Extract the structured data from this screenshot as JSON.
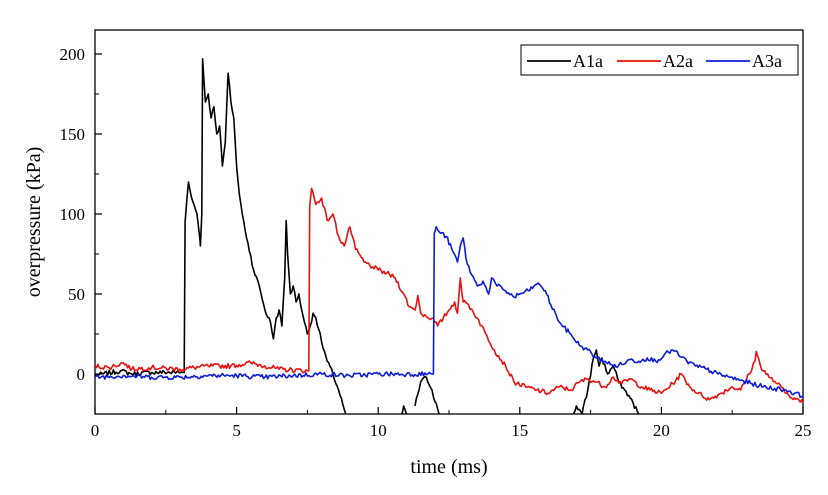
{
  "chart_data": {
    "type": "line",
    "xlabel": "time (ms)",
    "ylabel": "overpressure (kPa)",
    "xlim": [
      0,
      25
    ],
    "ylim": [
      -25,
      215
    ],
    "x_ticks": [
      "0",
      "5",
      "10",
      "15",
      "20",
      "25"
    ],
    "y_ticks": [
      "0",
      "50",
      "100",
      "150",
      "200"
    ],
    "legend_position": "top-right",
    "grid": false,
    "series": [
      {
        "name": "A1a",
        "color": "#000000",
        "points": [
          [
            0,
            -1
          ],
          [
            0.9,
            2
          ],
          [
            1.3,
            0
          ],
          [
            2,
            1
          ],
          [
            3.1,
            1
          ],
          [
            3.15,
            1
          ],
          [
            3.18,
            95
          ],
          [
            3.25,
            110
          ],
          [
            3.3,
            120
          ],
          [
            3.45,
            108
          ],
          [
            3.6,
            100
          ],
          [
            3.7,
            85
          ],
          [
            3.72,
            80
          ],
          [
            3.77,
            100
          ],
          [
            3.8,
            197
          ],
          [
            3.9,
            170
          ],
          [
            4,
            175
          ],
          [
            4.1,
            160
          ],
          [
            4.2,
            167
          ],
          [
            4.3,
            150
          ],
          [
            4.4,
            155
          ],
          [
            4.5,
            130
          ],
          [
            4.6,
            145
          ],
          [
            4.7,
            188
          ],
          [
            4.8,
            170
          ],
          [
            4.9,
            160
          ],
          [
            5,
            130
          ],
          [
            5.1,
            112
          ],
          [
            5.2,
            100
          ],
          [
            5.3,
            90
          ],
          [
            5.4,
            82
          ],
          [
            5.6,
            65
          ],
          [
            5.8,
            55
          ],
          [
            6,
            40
          ],
          [
            6.2,
            32
          ],
          [
            6.3,
            22
          ],
          [
            6.4,
            35
          ],
          [
            6.5,
            40
          ],
          [
            6.6,
            30
          ],
          [
            6.7,
            60
          ],
          [
            6.75,
            96
          ],
          [
            6.8,
            75
          ],
          [
            6.9,
            50
          ],
          [
            7,
            55
          ],
          [
            7.1,
            45
          ],
          [
            7.2,
            50
          ],
          [
            7.3,
            40
          ],
          [
            7.4,
            32
          ],
          [
            7.5,
            25
          ],
          [
            7.6,
            30
          ],
          [
            7.7,
            38
          ],
          [
            7.8,
            35
          ],
          [
            7.9,
            28
          ],
          [
            8,
            20
          ],
          [
            8.2,
            8
          ],
          [
            8.4,
            0
          ],
          [
            8.6,
            -10
          ],
          [
            8.8,
            -22
          ],
          [
            8.9,
            -30
          ]
        ],
        "segments_after_gap": [
          [
            [
              10.8,
              -30
            ],
            [
              10.9,
              -20
            ],
            [
              11,
              -25
            ],
            [
              11.2,
              -30
            ]
          ],
          [
            [
              11.3,
              -20
            ],
            [
              11.5,
              -5
            ],
            [
              11.7,
              -2
            ],
            [
              11.9,
              -10
            ],
            [
              12.1,
              -22
            ],
            [
              12.2,
              -30
            ]
          ],
          [
            [
              16.8,
              -30
            ],
            [
              17,
              -20
            ],
            [
              17.2,
              -25
            ],
            [
              17.4,
              -10
            ],
            [
              17.6,
              10
            ],
            [
              17.7,
              15
            ],
            [
              17.8,
              5
            ],
            [
              17.9,
              10
            ],
            [
              18.1,
              0
            ],
            [
              18.3,
              5
            ],
            [
              18.5,
              -5
            ],
            [
              18.7,
              -10
            ],
            [
              18.9,
              -15
            ],
            [
              19.2,
              -25
            ],
            [
              19.4,
              -30
            ]
          ]
        ]
      },
      {
        "name": "A2a",
        "color": "#e8110e",
        "points": [
          [
            0,
            5
          ],
          [
            0.5,
            4
          ],
          [
            1,
            7
          ],
          [
            1.3,
            3
          ],
          [
            2,
            4
          ],
          [
            3,
            3
          ],
          [
            4,
            5
          ],
          [
            4.8,
            5
          ],
          [
            5.5,
            7
          ],
          [
            6,
            5
          ],
          [
            6.5,
            3
          ],
          [
            7.5,
            2
          ],
          [
            7.55,
            2
          ],
          [
            7.58,
            105
          ],
          [
            7.65,
            116
          ],
          [
            7.8,
            106
          ],
          [
            8,
            110
          ],
          [
            8.2,
            96
          ],
          [
            8.4,
            100
          ],
          [
            8.6,
            86
          ],
          [
            8.8,
            80
          ],
          [
            9,
            92
          ],
          [
            9.2,
            78
          ],
          [
            9.5,
            70
          ],
          [
            9.8,
            67
          ],
          [
            10,
            65
          ],
          [
            10.3,
            63
          ],
          [
            10.6,
            60
          ],
          [
            10.9,
            50
          ],
          [
            11.1,
            42
          ],
          [
            11.3,
            40
          ],
          [
            11.4,
            49
          ],
          [
            11.5,
            38
          ],
          [
            11.7,
            36
          ],
          [
            11.9,
            35
          ],
          [
            12.1,
            30
          ],
          [
            12.3,
            35
          ],
          [
            12.5,
            40
          ],
          [
            12.7,
            45
          ],
          [
            12.8,
            38
          ],
          [
            12.9,
            60
          ],
          [
            13,
            45
          ],
          [
            13.2,
            43
          ],
          [
            13.5,
            35
          ],
          [
            13.8,
            25
          ],
          [
            14.1,
            15
          ],
          [
            14.5,
            5
          ],
          [
            14.8,
            -5
          ],
          [
            15.2,
            -8
          ],
          [
            15.6,
            -10
          ],
          [
            16,
            -12
          ],
          [
            16.4,
            -8
          ],
          [
            16.8,
            -10
          ],
          [
            17.1,
            -5
          ],
          [
            17.4,
            -3
          ],
          [
            17.7,
            -5
          ],
          [
            18,
            -8
          ],
          [
            18.3,
            -2
          ],
          [
            18.6,
            -6
          ],
          [
            18.9,
            -3
          ],
          [
            19.3,
            -8
          ],
          [
            19.6,
            -10
          ],
          [
            20,
            -12
          ],
          [
            20.4,
            -6
          ],
          [
            20.7,
            0
          ],
          [
            21,
            -8
          ],
          [
            21.3,
            -12
          ],
          [
            21.7,
            -16
          ],
          [
            22.1,
            -12
          ],
          [
            22.5,
            -8
          ],
          [
            22.8,
            -10
          ],
          [
            23.1,
            0
          ],
          [
            23.3,
            8
          ],
          [
            23.35,
            14
          ],
          [
            23.5,
            5
          ],
          [
            23.8,
            -2
          ],
          [
            24.1,
            -6
          ],
          [
            24.4,
            -12
          ],
          [
            24.7,
            -15
          ],
          [
            25,
            -18
          ]
        ]
      },
      {
        "name": "A3a",
        "color": "#0b1bd8",
        "points": [
          [
            0,
            -2
          ],
          [
            1,
            -1
          ],
          [
            2,
            -2
          ],
          [
            3,
            -2
          ],
          [
            4,
            -1
          ],
          [
            5,
            -1
          ],
          [
            6,
            -2
          ],
          [
            7,
            -1
          ],
          [
            8,
            0
          ],
          [
            9,
            -1
          ],
          [
            10,
            0
          ],
          [
            11,
            0
          ],
          [
            11.9,
            0
          ],
          [
            11.95,
            0
          ],
          [
            11.98,
            88
          ],
          [
            12.05,
            92
          ],
          [
            12.2,
            88
          ],
          [
            12.4,
            86
          ],
          [
            12.6,
            78
          ],
          [
            12.8,
            70
          ],
          [
            12.9,
            80
          ],
          [
            13,
            85
          ],
          [
            13.1,
            72
          ],
          [
            13.3,
            62
          ],
          [
            13.5,
            55
          ],
          [
            13.7,
            58
          ],
          [
            13.9,
            50
          ],
          [
            14,
            60
          ],
          [
            14.2,
            55
          ],
          [
            14.5,
            52
          ],
          [
            14.8,
            48
          ],
          [
            15,
            50
          ],
          [
            15.3,
            52
          ],
          [
            15.5,
            55
          ],
          [
            15.7,
            56
          ],
          [
            15.9,
            52
          ],
          [
            16.1,
            43
          ],
          [
            16.3,
            36
          ],
          [
            16.5,
            30
          ],
          [
            16.8,
            25
          ],
          [
            17.1,
            18
          ],
          [
            17.4,
            15
          ],
          [
            17.7,
            10
          ],
          [
            18,
            8
          ],
          [
            18.3,
            5
          ],
          [
            18.6,
            6
          ],
          [
            18.9,
            9
          ],
          [
            19.2,
            8
          ],
          [
            19.5,
            10
          ],
          [
            19.8,
            8
          ],
          [
            20.1,
            12
          ],
          [
            20.4,
            15
          ],
          [
            20.6,
            12
          ],
          [
            20.9,
            8
          ],
          [
            21.2,
            5
          ],
          [
            21.6,
            3
          ],
          [
            22,
            0
          ],
          [
            22.4,
            -2
          ],
          [
            22.8,
            -4
          ],
          [
            23.2,
            -6
          ],
          [
            23.6,
            -8
          ],
          [
            24,
            -9
          ],
          [
            24.4,
            -10
          ],
          [
            24.7,
            -12
          ],
          [
            25,
            -14
          ]
        ]
      }
    ]
  }
}
